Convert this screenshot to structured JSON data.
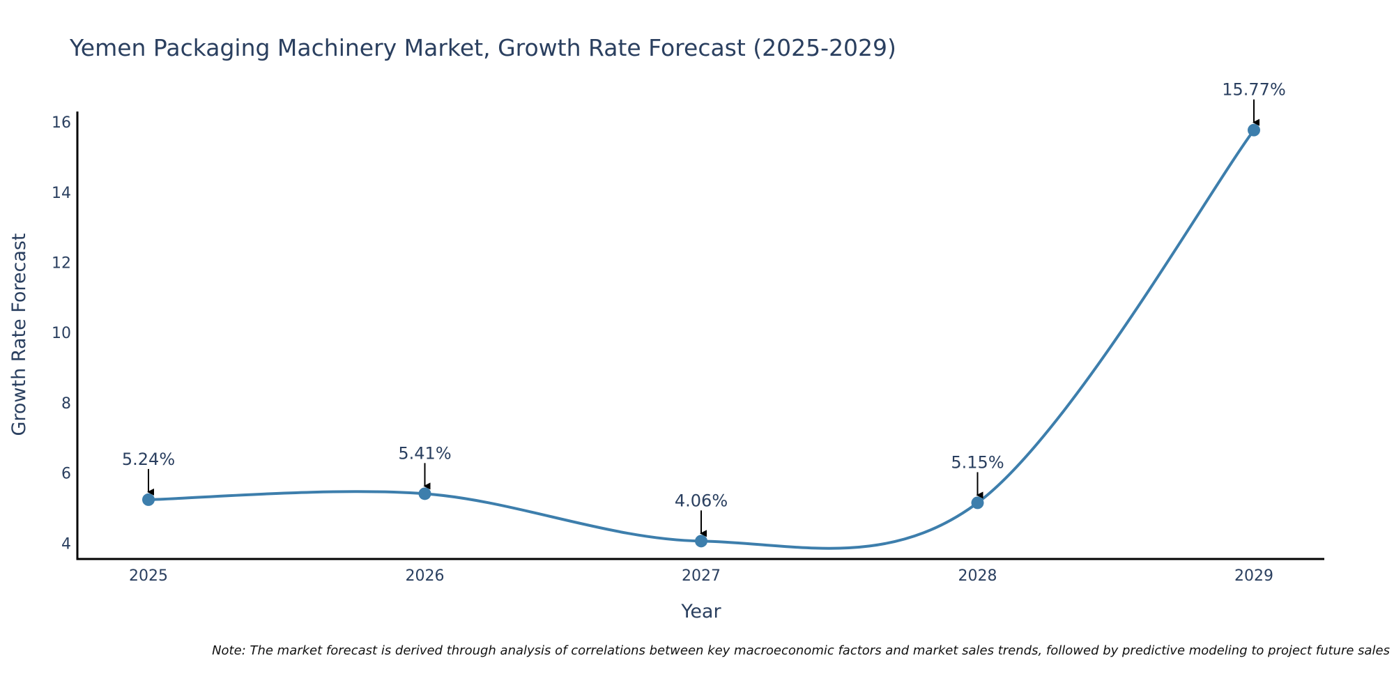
{
  "chart_data": {
    "type": "line",
    "title": "Yemen Packaging Machinery Market, Growth Rate Forecast (2025-2029)",
    "xlabel": "Year",
    "ylabel": "Growth Rate Forecast",
    "categories": [
      "2025",
      "2026",
      "2027",
      "2028",
      "2029"
    ],
    "values": [
      5.24,
      5.41,
      4.06,
      5.15,
      15.77
    ],
    "data_labels": [
      "5.24%",
      "5.41%",
      "4.06%",
      "5.15%",
      "15.77%"
    ],
    "y_ticks": [
      4,
      6,
      8,
      10,
      12,
      14,
      16
    ],
    "ylim": [
      3.55,
      16.3
    ],
    "grid": false,
    "line_shape": "spline",
    "line_color": "#3d7eac",
    "marker_color": "#3d7eac",
    "annotation_arrow_color": "#000000",
    "note": "Note: The market forecast is derived through analysis of correlations between key macroeconomic factors and market sales trends, followed by predictive modeling to project future sales"
  }
}
